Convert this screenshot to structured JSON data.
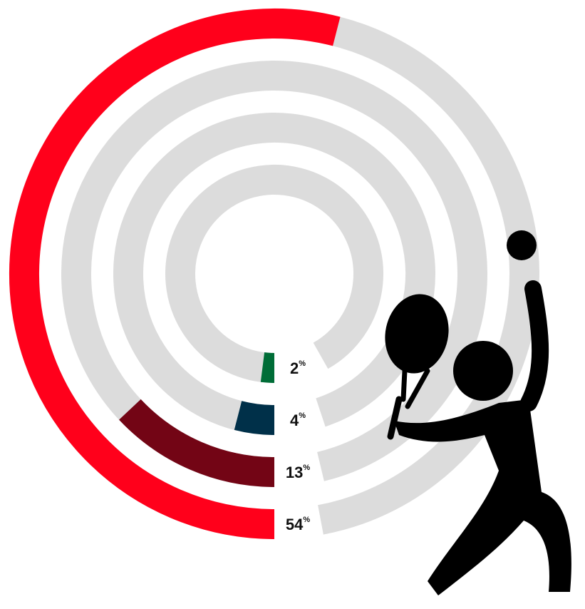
{
  "chart_data": {
    "type": "radial_bar",
    "values": [
      54,
      13,
      4,
      2
    ],
    "value_labels": [
      "54%",
      "13%",
      "4%",
      "2%"
    ],
    "colors": [
      "#ff001b",
      "#730515",
      "#003049",
      "#006d37"
    ],
    "track_color": "#dcdcdc",
    "ylim": [
      0,
      100
    ]
  }
}
